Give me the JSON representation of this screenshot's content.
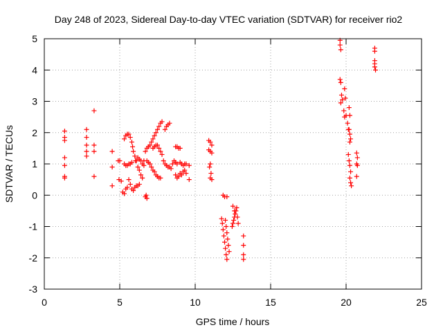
{
  "chart_data": {
    "type": "scatter",
    "title": "Day 248 of 2023, Sidereal Day-to-day VTEC variation (SDTVAR) for receiver rio2",
    "xlabel": "GPS time / hours",
    "ylabel": "SDTVAR / TECUs",
    "xlim": [
      0,
      25
    ],
    "ylim": [
      -3,
      5
    ],
    "xticks": [
      0,
      5,
      10,
      15,
      20,
      25
    ],
    "yticks": [
      -3,
      -2,
      -1,
      0,
      1,
      2,
      3,
      4,
      5
    ],
    "grid": true,
    "marker": "+",
    "color": "#ff0000",
    "series": [
      {
        "name": "rio2",
        "points": [
          [
            1.35,
            2.05
          ],
          [
            1.35,
            1.85
          ],
          [
            1.35,
            1.75
          ],
          [
            1.35,
            1.2
          ],
          [
            1.35,
            0.95
          ],
          [
            1.35,
            0.6
          ],
          [
            1.35,
            0.55
          ],
          [
            2.8,
            2.1
          ],
          [
            2.8,
            1.85
          ],
          [
            2.8,
            1.6
          ],
          [
            2.8,
            1.4
          ],
          [
            2.8,
            1.25
          ],
          [
            3.3,
            2.7
          ],
          [
            3.3,
            1.6
          ],
          [
            3.3,
            1.4
          ],
          [
            3.3,
            0.6
          ],
          [
            4.5,
            1.4
          ],
          [
            4.5,
            0.9
          ],
          [
            4.5,
            0.3
          ],
          [
            4.9,
            1.1
          ],
          [
            5.0,
            1.1
          ],
          [
            4.95,
            0.5
          ],
          [
            5.1,
            0.45
          ],
          [
            5.2,
            0.1
          ],
          [
            5.3,
            0.05
          ],
          [
            5.4,
            0.2
          ],
          [
            5.5,
            0.25
          ],
          [
            5.3,
            1.0
          ],
          [
            5.4,
            0.95
          ],
          [
            5.5,
            0.95
          ],
          [
            5.6,
            1.0
          ],
          [
            5.7,
            1.0
          ],
          [
            5.8,
            1.05
          ],
          [
            5.3,
            1.8
          ],
          [
            5.4,
            1.9
          ],
          [
            5.5,
            1.95
          ],
          [
            5.6,
            1.95
          ],
          [
            5.7,
            1.85
          ],
          [
            5.8,
            1.7
          ],
          [
            5.85,
            1.55
          ],
          [
            5.9,
            1.4
          ],
          [
            6.0,
            1.25
          ],
          [
            6.05,
            1.1
          ],
          [
            5.6,
            0.5
          ],
          [
            5.7,
            0.35
          ],
          [
            5.8,
            0.2
          ],
          [
            5.9,
            0.15
          ],
          [
            6.0,
            0.25
          ],
          [
            6.1,
            0.3
          ],
          [
            6.2,
            0.3
          ],
          [
            6.3,
            0.35
          ],
          [
            6.1,
            1.1
          ],
          [
            6.2,
            1.2
          ],
          [
            6.3,
            1.15
          ],
          [
            6.4,
            1.1
          ],
          [
            6.5,
            1.0
          ],
          [
            6.6,
            0.95
          ],
          [
            6.6,
            1.1
          ],
          [
            6.2,
            0.9
          ],
          [
            6.3,
            0.8
          ],
          [
            6.4,
            0.65
          ],
          [
            6.5,
            0.55
          ],
          [
            6.7,
            -0.05
          ],
          [
            6.8,
            -0.1
          ],
          [
            6.75,
            0.0
          ],
          [
            6.7,
            1.4
          ],
          [
            6.8,
            1.5
          ],
          [
            6.9,
            1.55
          ],
          [
            7.0,
            1.6
          ],
          [
            7.1,
            1.7
          ],
          [
            7.2,
            1.8
          ],
          [
            7.3,
            1.9
          ],
          [
            7.4,
            2.0
          ],
          [
            7.5,
            2.1
          ],
          [
            7.6,
            2.2
          ],
          [
            7.7,
            2.3
          ],
          [
            7.8,
            2.35
          ],
          [
            6.8,
            1.1
          ],
          [
            6.9,
            1.05
          ],
          [
            7.0,
            1.0
          ],
          [
            7.1,
            0.9
          ],
          [
            7.2,
            0.8
          ],
          [
            7.3,
            0.75
          ],
          [
            7.4,
            0.65
          ],
          [
            7.5,
            0.6
          ],
          [
            7.6,
            0.55
          ],
          [
            7.7,
            0.55
          ],
          [
            7.2,
            1.5
          ],
          [
            7.3,
            1.55
          ],
          [
            7.4,
            1.6
          ],
          [
            7.5,
            1.6
          ],
          [
            7.6,
            1.5
          ],
          [
            7.7,
            1.4
          ],
          [
            7.8,
            1.3
          ],
          [
            7.9,
            1.1
          ],
          [
            8.0,
            1.0
          ],
          [
            8.1,
            0.95
          ],
          [
            8.2,
            0.9
          ],
          [
            8.3,
            0.9
          ],
          [
            8.4,
            0.85
          ],
          [
            8.0,
            2.1
          ],
          [
            8.1,
            2.2
          ],
          [
            8.2,
            2.25
          ],
          [
            8.3,
            2.3
          ],
          [
            8.5,
            1.0
          ],
          [
            8.6,
            1.1
          ],
          [
            8.7,
            1.05
          ],
          [
            8.8,
            1.0
          ],
          [
            8.8,
            1.55
          ],
          [
            8.9,
            1.5
          ],
          [
            9.0,
            1.5
          ],
          [
            8.7,
            1.55
          ],
          [
            8.7,
            0.65
          ],
          [
            8.8,
            0.55
          ],
          [
            8.9,
            0.6
          ],
          [
            9.0,
            0.7
          ],
          [
            9.1,
            0.65
          ],
          [
            9.0,
            1.05
          ],
          [
            9.1,
            1.0
          ],
          [
            9.2,
            0.95
          ],
          [
            9.3,
            1.0
          ],
          [
            9.4,
            1.0
          ],
          [
            9.2,
            0.75
          ],
          [
            9.3,
            0.8
          ],
          [
            9.4,
            0.7
          ],
          [
            9.6,
            0.95
          ],
          [
            9.6,
            0.5
          ],
          [
            10.9,
            1.75
          ],
          [
            11.0,
            1.7
          ],
          [
            11.1,
            1.6
          ],
          [
            11.0,
            1.4
          ],
          [
            10.9,
            1.45
          ],
          [
            11.1,
            1.35
          ],
          [
            11.0,
            1.0
          ],
          [
            10.95,
            0.9
          ],
          [
            11.05,
            0.7
          ],
          [
            11.0,
            0.55
          ],
          [
            11.1,
            0.5
          ],
          [
            11.75,
            -0.75
          ],
          [
            11.8,
            -0.9
          ],
          [
            11.85,
            -1.1
          ],
          [
            11.9,
            -1.3
          ],
          [
            11.95,
            -1.5
          ],
          [
            12.0,
            -1.7
          ],
          [
            12.05,
            -1.9
          ],
          [
            12.1,
            -2.05
          ],
          [
            11.85,
            0.0
          ],
          [
            11.95,
            -0.05
          ],
          [
            12.1,
            -0.05
          ],
          [
            12.0,
            -0.8
          ],
          [
            12.05,
            -1.0
          ],
          [
            12.1,
            -1.2
          ],
          [
            12.15,
            -1.4
          ],
          [
            12.2,
            -1.6
          ],
          [
            12.25,
            -1.8
          ],
          [
            12.45,
            -1.0
          ],
          [
            12.5,
            -0.9
          ],
          [
            12.55,
            -0.8
          ],
          [
            12.6,
            -0.7
          ],
          [
            12.65,
            -0.6
          ],
          [
            12.7,
            -0.5
          ],
          [
            12.75,
            -0.4
          ],
          [
            12.5,
            -0.35
          ],
          [
            12.6,
            -0.5
          ],
          [
            12.8,
            -0.7
          ],
          [
            12.85,
            -0.9
          ],
          [
            13.2,
            -1.3
          ],
          [
            13.2,
            -1.6
          ],
          [
            13.2,
            -1.9
          ],
          [
            13.2,
            -2.05
          ],
          [
            19.6,
            4.95
          ],
          [
            19.6,
            4.8
          ],
          [
            19.65,
            4.65
          ],
          [
            19.6,
            3.7
          ],
          [
            19.65,
            3.6
          ],
          [
            19.7,
            3.2
          ],
          [
            19.75,
            3.05
          ],
          [
            19.65,
            2.95
          ],
          [
            19.9,
            3.4
          ],
          [
            19.95,
            3.1
          ],
          [
            19.85,
            2.7
          ],
          [
            19.9,
            2.5
          ],
          [
            20.0,
            2.55
          ],
          [
            20.1,
            2.3
          ],
          [
            20.15,
            2.1
          ],
          [
            20.2,
            2.1
          ],
          [
            20.25,
            1.95
          ],
          [
            20.3,
            1.8
          ],
          [
            20.25,
            1.7
          ],
          [
            20.2,
            2.8
          ],
          [
            20.25,
            2.55
          ],
          [
            20.15,
            1.3
          ],
          [
            20.2,
            1.1
          ],
          [
            20.25,
            0.95
          ],
          [
            20.3,
            0.75
          ],
          [
            20.25,
            0.55
          ],
          [
            20.3,
            0.4
          ],
          [
            20.35,
            0.3
          ],
          [
            20.7,
            1.35
          ],
          [
            20.75,
            1.2
          ],
          [
            20.7,
            1.0
          ],
          [
            20.75,
            0.95
          ],
          [
            20.7,
            0.6
          ],
          [
            21.9,
            4.7
          ],
          [
            21.9,
            4.6
          ],
          [
            21.9,
            4.3
          ],
          [
            21.9,
            4.2
          ],
          [
            21.9,
            4.1
          ],
          [
            21.95,
            4.0
          ]
        ]
      }
    ]
  }
}
